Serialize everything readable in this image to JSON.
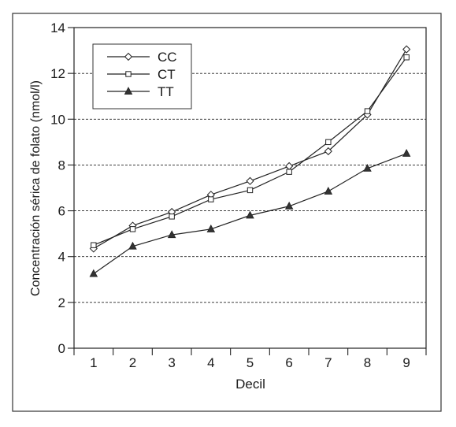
{
  "chart_data": {
    "type": "line",
    "xlabel": "Decil",
    "ylabel": "Concentración sérica de folato (nmol/l)",
    "x": [
      1,
      2,
      3,
      4,
      5,
      6,
      7,
      8,
      9
    ],
    "xlim": [
      0.5,
      9.5
    ],
    "ylim": [
      0,
      14
    ],
    "yticks": [
      0,
      2,
      4,
      6,
      8,
      10,
      12,
      14
    ],
    "grid": "horizontal dashed",
    "legend": "top-left",
    "series": [
      {
        "name": "CC",
        "marker": "diamond",
        "values": [
          4.35,
          5.35,
          5.95,
          6.7,
          7.3,
          7.95,
          8.6,
          10.2,
          13.05
        ]
      },
      {
        "name": "CT",
        "marker": "square",
        "values": [
          4.5,
          5.2,
          5.75,
          6.5,
          6.9,
          7.7,
          9.0,
          10.35,
          12.7
        ]
      },
      {
        "name": "TT",
        "marker": "triangle",
        "values": [
          3.25,
          4.45,
          4.95,
          5.2,
          5.8,
          6.2,
          6.85,
          7.85,
          8.5
        ]
      }
    ]
  }
}
